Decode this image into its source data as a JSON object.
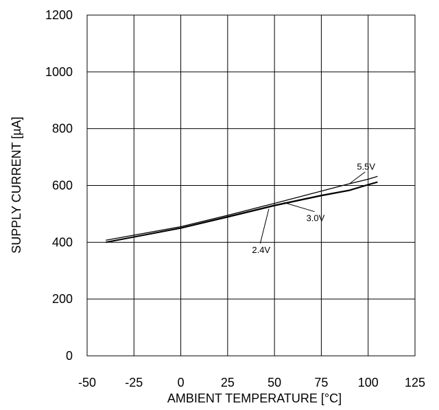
{
  "chart_data": {
    "type": "line",
    "title": "",
    "xlabel": "AMBIENT TEMPERATURE [°C]",
    "ylabel": "SUPPLY CURRENT [µA]",
    "xlim": [
      -50,
      125
    ],
    "ylim": [
      0,
      1200
    ],
    "xticks": [
      -50,
      -25,
      0,
      25,
      50,
      75,
      100,
      125
    ],
    "yticks": [
      0,
      200,
      400,
      600,
      800,
      1000,
      1200
    ],
    "xtick_labels": [
      "-50",
      "-25",
      "0",
      "25",
      "50",
      "75",
      "100",
      "125"
    ],
    "ytick_labels": [
      "0",
      "200",
      "400",
      "600",
      "800",
      "1000",
      "1200"
    ],
    "grid": true,
    "legend": "none",
    "series": [
      {
        "name": "5.5V",
        "x": [
          -40,
          0,
          25,
          50,
          75,
          90,
          100,
          105
        ],
        "y": [
          407,
          455,
          495,
          537,
          580,
          606,
          622,
          632
        ]
      },
      {
        "name": "3.0V",
        "x": [
          -40,
          0,
          25,
          50,
          75,
          90,
          100,
          105
        ],
        "y": [
          400,
          450,
          490,
          530,
          565,
          583,
          603,
          612
        ]
      },
      {
        "name": "2.4V",
        "x": [
          -40,
          0,
          25,
          50,
          75,
          90,
          100,
          105
        ],
        "y": [
          399,
          449,
          488,
          528,
          563,
          582,
          602,
          611
        ]
      }
    ],
    "annotations": [
      {
        "text": "5.5V",
        "x": 94,
        "y": 655,
        "point_x": 90,
        "point_y": 606
      },
      {
        "text": "3.0V",
        "x": 67,
        "y": 474,
        "point_x": 55,
        "point_y": 540
      },
      {
        "text": "2.4V",
        "x": 38,
        "y": 362,
        "point_x": 47,
        "point_y": 518
      }
    ],
    "colors": {
      "line": "#000000",
      "grid": "#000000",
      "background": "#ffffff"
    }
  }
}
